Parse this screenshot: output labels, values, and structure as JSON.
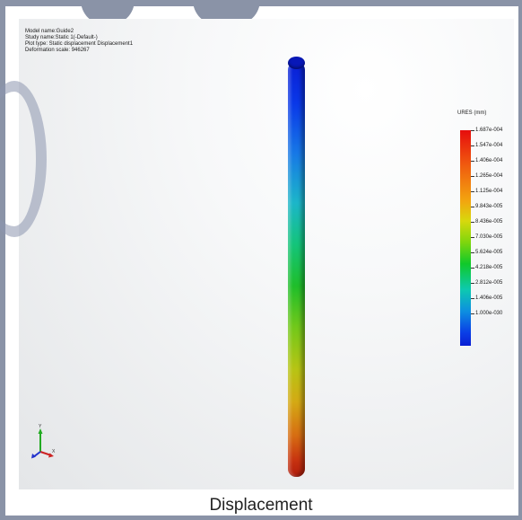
{
  "info": {
    "model_name": "Model name:Guide2",
    "study_name": "Study name:Static 1(-Default-)",
    "plot_type": "Plot type: Static displacement Displacement1",
    "deformation_scale": "Deformation scale: 946267"
  },
  "legend": {
    "title": "URES (mm)",
    "labels": [
      "1.687e-004",
      "1.547e-004",
      "1.406e-004",
      "1.265e-004",
      "1.125e-004",
      "9.843e-005",
      "8.436e-005",
      "7.030e-005",
      "5.624e-005",
      "4.218e-005",
      "2.812e-005",
      "1.406e-005",
      "1.000e-030"
    ]
  },
  "triad": {
    "y_label": "Y",
    "x_label": "X"
  },
  "caption": "Displacement"
}
